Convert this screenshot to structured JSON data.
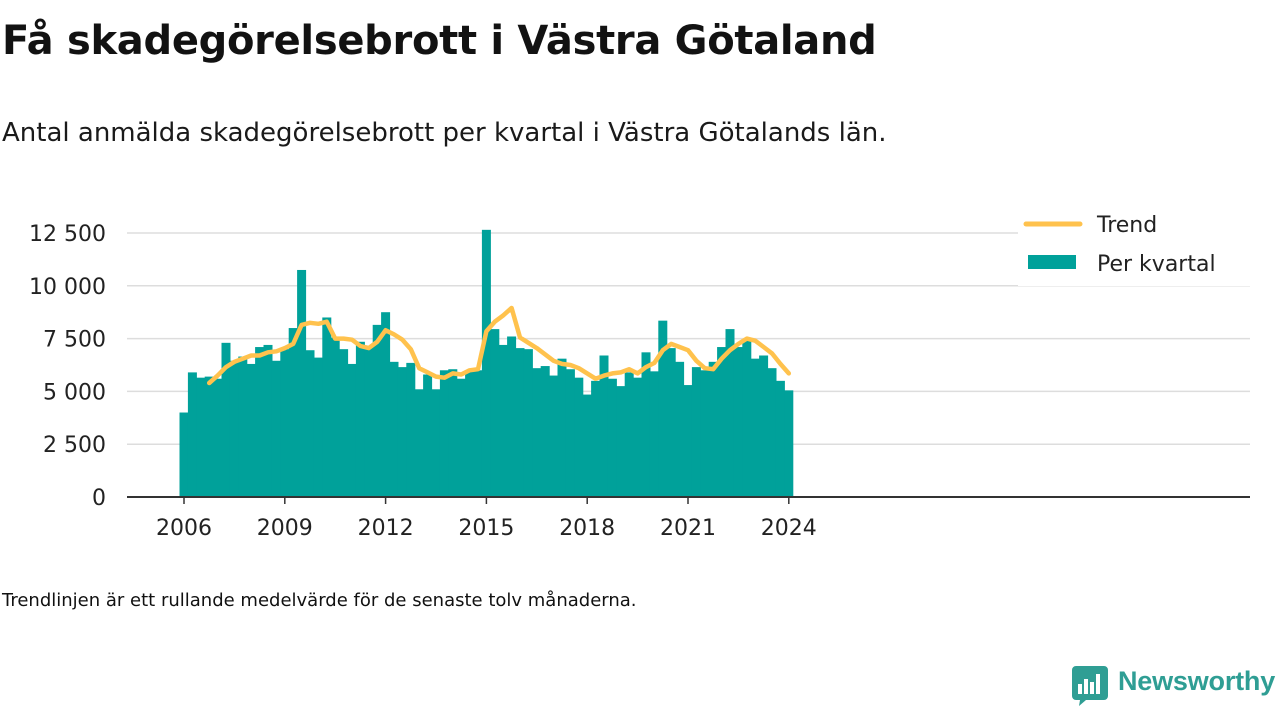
{
  "title": "Få skadegörelsebrott i Västra Götaland",
  "subtitle": "Antal anmälda skadegörelsebrott per kvartal i Västra Götalands län.",
  "note": "Trendlinjen är ett rullande medelvärde för de senaste tolv månaderna.",
  "brand": {
    "name": "Newsworthy",
    "icon": "newsworthy-logo-icon",
    "color": "#2f9e94"
  },
  "colors": {
    "bars": "#00a19a",
    "trend": "#ffc24d",
    "grid": "#dddddd",
    "axis": "#333333",
    "text": "#222222"
  },
  "chart_data": {
    "type": "bar",
    "title": "Få skadegörelsebrott i Västra Götaland",
    "subtitle": "Antal anmälda skadegörelsebrott per kvartal i Västra Götalands län.",
    "xlabel": "",
    "ylabel": "",
    "x_ticks": [
      "2006",
      "2009",
      "2012",
      "2015",
      "2018",
      "2021",
      "2024"
    ],
    "y_ticks": [
      "0",
      "2 500",
      "5 000",
      "7 500",
      "10 000",
      "12 500"
    ],
    "ylim": [
      0,
      12500
    ],
    "grid": "horizontal",
    "legend": "top-right",
    "categories": [
      "2006 Q1",
      "2006 Q2",
      "2006 Q3",
      "2006 Q4",
      "2007 Q1",
      "2007 Q2",
      "2007 Q3",
      "2007 Q4",
      "2008 Q1",
      "2008 Q2",
      "2008 Q3",
      "2008 Q4",
      "2009 Q1",
      "2009 Q2",
      "2009 Q3",
      "2009 Q4",
      "2010 Q1",
      "2010 Q2",
      "2010 Q3",
      "2010 Q4",
      "2011 Q1",
      "2011 Q2",
      "2011 Q3",
      "2011 Q4",
      "2012 Q1",
      "2012 Q2",
      "2012 Q3",
      "2012 Q4",
      "2013 Q1",
      "2013 Q2",
      "2013 Q3",
      "2013 Q4",
      "2014 Q1",
      "2014 Q2",
      "2014 Q3",
      "2014 Q4",
      "2015 Q1",
      "2015 Q2",
      "2015 Q3",
      "2015 Q4",
      "2016 Q1",
      "2016 Q2",
      "2016 Q3",
      "2016 Q4",
      "2017 Q1",
      "2017 Q2",
      "2017 Q3",
      "2017 Q4",
      "2018 Q1",
      "2018 Q2",
      "2018 Q3",
      "2018 Q4",
      "2019 Q1",
      "2019 Q2",
      "2019 Q3",
      "2019 Q4",
      "2020 Q1",
      "2020 Q2",
      "2020 Q3",
      "2020 Q4",
      "2021 Q1",
      "2021 Q2",
      "2021 Q3",
      "2021 Q4",
      "2022 Q1",
      "2022 Q2",
      "2022 Q3",
      "2022 Q4",
      "2023 Q1",
      "2023 Q2",
      "2023 Q3",
      "2023 Q4",
      "2024 Q1"
    ],
    "series": [
      {
        "name": "Per kvartal",
        "type": "bar",
        "color": "#00a19a",
        "values": [
          4000,
          5900,
          5650,
          5700,
          5600,
          7300,
          6450,
          6650,
          6300,
          7100,
          7200,
          6450,
          7000,
          8000,
          10750,
          6950,
          6600,
          8500,
          7550,
          7000,
          6300,
          7350,
          7150,
          8150,
          8750,
          6400,
          6150,
          6350,
          5100,
          5800,
          5100,
          6000,
          6050,
          5600,
          6000,
          6000,
          12650,
          7950,
          7200,
          7600,
          7050,
          7000,
          6100,
          6200,
          5750,
          6550,
          6050,
          5650,
          4850,
          5500,
          6700,
          5600,
          5250,
          5900,
          5650,
          6850,
          5950,
          8350,
          7050,
          6400,
          5300,
          6150,
          6000,
          6400,
          7100,
          7950,
          7100,
          7400,
          6550,
          6700,
          6100,
          5500,
          5050
        ]
      },
      {
        "name": "Trend",
        "type": "line",
        "color": "#ffc24d",
        "values": [
          null,
          null,
          null,
          5400,
          5750,
          6150,
          6400,
          6550,
          6700,
          6700,
          6850,
          6900,
          7050,
          7250,
          8150,
          8250,
          8200,
          8300,
          7500,
          7500,
          7450,
          7150,
          7050,
          7350,
          7900,
          7700,
          7450,
          7000,
          6100,
          5900,
          5700,
          5650,
          5850,
          5800,
          6000,
          6050,
          7850,
          8300,
          8600,
          8950,
          7550,
          7300,
          7050,
          6750,
          6450,
          6300,
          6250,
          6100,
          5850,
          5600,
          5750,
          5850,
          5900,
          6050,
          5850,
          6150,
          6350,
          6950,
          7250,
          7100,
          6950,
          6450,
          6100,
          6050,
          6550,
          6950,
          7250,
          7500,
          7400,
          7100,
          6800,
          6300,
          5850
        ]
      }
    ]
  }
}
